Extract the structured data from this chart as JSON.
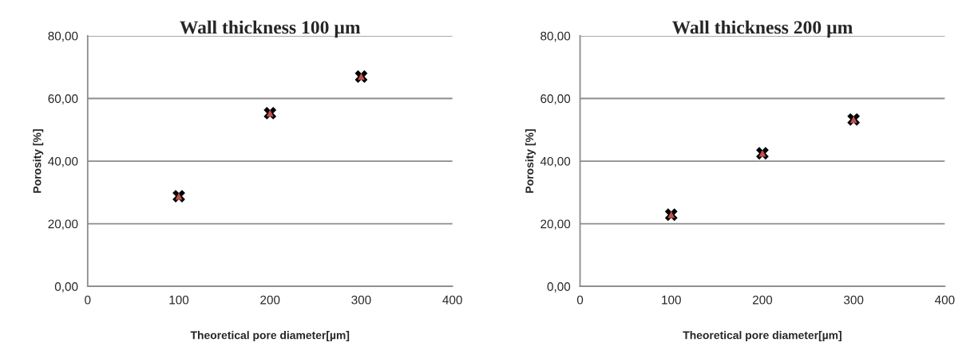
{
  "chart_data": [
    {
      "type": "scatter",
      "title": "Wall thickness 100 µm",
      "xlabel": "Theoretical pore diameter[µm]",
      "ylabel": "Porosity [%]",
      "x": [
        100,
        200,
        300
      ],
      "series": [
        {
          "color": "#000000",
          "marker": "cross",
          "values": [
            28.8,
            55.3,
            67.0
          ]
        },
        {
          "color": "#c0504d",
          "marker": "triangle",
          "values": [
            28.8,
            55.3,
            67.0
          ]
        }
      ],
      "xlim": [
        0,
        400
      ],
      "xticks": [
        0,
        100,
        200,
        300,
        400
      ],
      "ylim": [
        0,
        80
      ],
      "yticks": [
        {
          "value": 0,
          "label": "0,00"
        },
        {
          "value": 20,
          "label": "20,00"
        },
        {
          "value": 40,
          "label": "40,00"
        },
        {
          "value": 60,
          "label": "60,00"
        },
        {
          "value": 80,
          "label": "80,00"
        }
      ],
      "grid": "y"
    },
    {
      "type": "scatter",
      "title": "Wall thickness 200 µm",
      "xlabel": "Theoretical pore diameter[µm]",
      "ylabel": "Porosity [%]",
      "x": [
        100,
        200,
        300
      ],
      "series": [
        {
          "color": "#000000",
          "marker": "cross",
          "values": [
            22.9,
            42.5,
            53.3
          ]
        },
        {
          "color": "#c0504d",
          "marker": "triangle",
          "values": [
            22.9,
            42.5,
            53.3
          ]
        }
      ],
      "xlim": [
        0,
        400
      ],
      "xticks": [
        0,
        100,
        200,
        300,
        400
      ],
      "ylim": [
        0,
        80
      ],
      "yticks": [
        {
          "value": 0,
          "label": "0,00"
        },
        {
          "value": 20,
          "label": "20,00"
        },
        {
          "value": 40,
          "label": "40,00"
        },
        {
          "value": 60,
          "label": "60,00"
        },
        {
          "value": 80,
          "label": "80,00"
        }
      ],
      "grid": "y"
    }
  ]
}
